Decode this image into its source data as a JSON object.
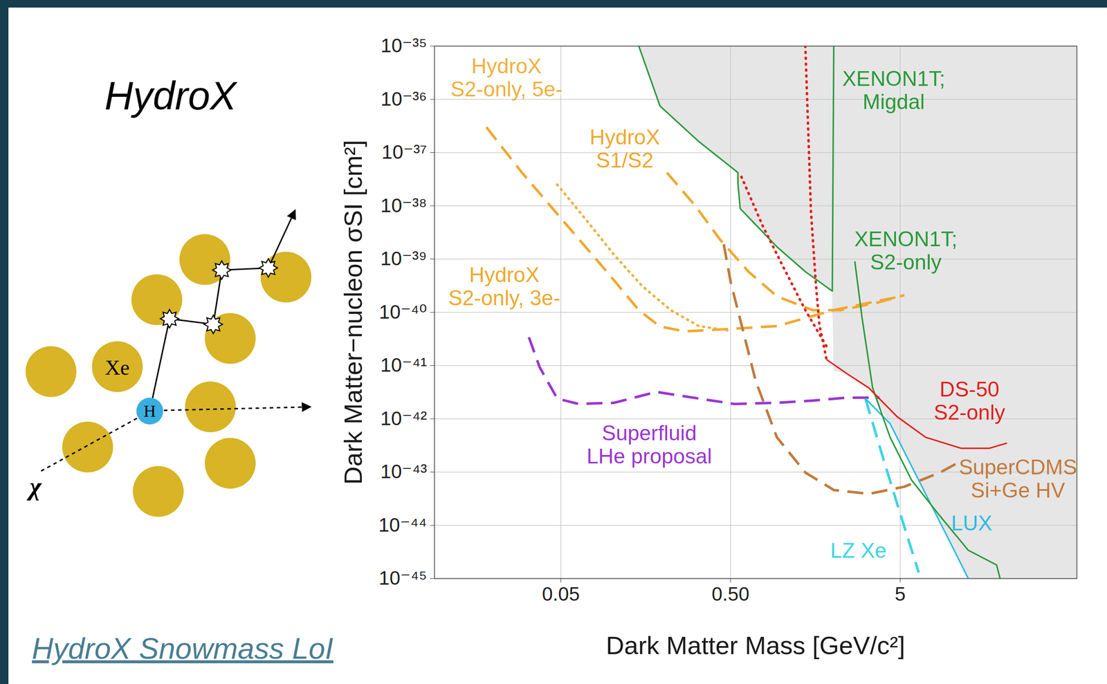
{
  "title": "HydroX",
  "diagram": {
    "atom_label": "Xe",
    "target_label": "H",
    "particle_label": "χ"
  },
  "caption": "HydroX Snowmass LoI",
  "chart_data": {
    "type": "line",
    "x_label": "Dark Matter Mass [GeV/c²]",
    "y_label": "Dark Matter−nucleon σSI [cm²]",
    "log": true,
    "grid": true,
    "xlim": [
      0.009,
      55
    ],
    "ylim": [
      1e-45,
      1e-35
    ],
    "xticks": [
      0.05,
      {
        "value": 0.5,
        "label": "0.50"
      },
      5
    ],
    "yticks": [
      {
        "value": 1e-35,
        "label": "10⁻³⁵"
      },
      {
        "value": 1e-36,
        "label": "10⁻³⁶"
      },
      {
        "value": 1e-37,
        "label": "10⁻³⁷"
      },
      {
        "value": 1e-38,
        "label": "10⁻³⁸"
      },
      {
        "value": 1e-39,
        "label": "10⁻³⁹"
      },
      {
        "value": 1e-40,
        "label": "10⁻⁴⁰"
      },
      {
        "value": 1e-41,
        "label": "10⁻⁴¹"
      },
      {
        "value": 1e-42,
        "label": "10⁻⁴²"
      },
      {
        "value": 1e-43,
        "label": "10⁻⁴³"
      },
      {
        "value": 1e-44,
        "label": "10⁻⁴⁴"
      },
      {
        "value": 1e-45,
        "label": "10⁻⁴⁵"
      }
    ],
    "excluded_region": {
      "color": "#e6e6e6",
      "x": [
        0.144,
        0.192,
        0.326,
        0.553,
        0.57,
        0.938,
        1.38,
        1.99,
        2.03,
        2.45,
        3.27,
        4.36,
        5.83,
        7.79,
        10.4,
        12.6,
        55
      ],
      "y": [
        1e-35,
        7.5e-37,
        1.6e-37,
        4.2e-38,
        8.9e-39,
        1.7e-39,
        5.8e-40,
        2.5e-40,
        8e-42,
        6.9e-42,
        3.8e-42,
        8.1e-43,
        1.3e-43,
        2.1e-44,
        3.4e-45,
        1e-45,
        1e-45
      ]
    },
    "series": [
      {
        "name": "HydroX\nS2-only, 3e-",
        "color": "#f0a830",
        "line_style": "dashed",
        "x": [
          0.0182,
          0.0295,
          0.0525,
          0.0933,
          0.144,
          0.192,
          0.269,
          0.359,
          0.938,
          2.03,
          5.05
        ],
        "values": [
          3e-37,
          4.2e-38,
          4.9e-39,
          5.8e-40,
          1.1e-40,
          5.4e-41,
          4.4e-41,
          4.6e-41,
          5.5e-41,
          1.1e-40,
          2e-40
        ],
        "label_at": [
          0.0232,
          3.1e-40
        ]
      },
      {
        "name": "HydroX\nS2-only, 5e-",
        "color": "#f0b040",
        "line_style": "dotted",
        "x": [
          0.0476,
          0.07,
          0.103,
          0.151,
          0.222,
          0.326,
          0.479
        ],
        "values": [
          2.5e-38,
          5.6e-39,
          1.2e-39,
          3.1e-40,
          1.1e-40,
          5.5e-41,
          4.6e-41
        ],
        "label_at": [
          0.0239,
          2.6e-36
        ]
      },
      {
        "name": "HydroX\nS1/S2",
        "color": "#f0a830",
        "line_style": "dashed",
        "x": [
          0.211,
          0.31,
          0.435,
          0.638,
          0.938,
          1.52,
          2.23,
          3.61,
          5.29
        ],
        "values": [
          4.2e-38,
          1e-38,
          2.3e-39,
          5.8e-40,
          2e-40,
          1.1e-40,
          1.1e-40,
          1.5e-40,
          2.1e-40
        ],
        "label_at": [
          0.119,
          1.2e-37
        ]
      },
      {
        "name": "SuperCDMS\nSi+Ge HV",
        "color": "#c27a3c",
        "line_style": "dashed",
        "x": [
          0.456,
          0.502,
          0.58,
          0.704,
          0.938,
          1.38,
          2.03,
          3.27,
          5.29,
          8.57,
          11.4
        ],
        "values": [
          1.9e-39,
          3.6e-40,
          5.9e-41,
          5.1e-42,
          4.5e-43,
          9.8e-44,
          4.6e-44,
          3.9e-44,
          5.3e-44,
          9.8e-44,
          1.6e-43
        ],
        "label_at": [
          24.7,
          7.6e-44
        ]
      },
      {
        "name": "Superfluid\nLHe proposal",
        "color": "#9b35d0",
        "line_style": "dashed",
        "x": [
          0.0324,
          0.0375,
          0.0476,
          0.0636,
          0.103,
          0.183,
          0.326,
          0.527,
          0.938,
          1.52,
          2.45,
          3.78
        ],
        "values": [
          3.4e-41,
          9.3e-42,
          2.4e-42,
          1.9e-42,
          2e-42,
          3.2e-42,
          2.4e-42,
          1.9e-42,
          2e-42,
          2.2e-42,
          2.5e-42,
          2.5e-42
        ],
        "label_at": [
          0.166,
          3.3e-43
        ]
      },
      {
        "name": "LZ Xe",
        "color": "#3fd3e3",
        "line_style": "dashed",
        "x": [
          3.12,
          3.97,
          5.05,
          6.43
        ],
        "values": [
          2.4e-42,
          1.8e-43,
          1.5e-44,
          1.3e-45
        ],
        "label_at": [
          2.84,
          3.4e-45
        ]
      },
      {
        "name": "LUX",
        "color": "#2bbbe0",
        "line_style": "solid",
        "x": [
          3.12,
          4.36,
          5.83,
          7.79,
          10.4,
          12.6
        ],
        "values": [
          2.4e-42,
          8.1e-43,
          1.3e-43,
          2.1e-44,
          3.4e-45,
          1e-45
        ],
        "label_at": [
          13.2,
          1.1e-44
        ]
      },
      {
        "name": "XENON1T;\nMigdal",
        "color": "#2a9a3a",
        "line_style": "solid",
        "x": [
          0.144,
          0.192,
          0.326,
          0.553,
          0.553,
          0.57,
          0.938,
          1.38,
          1.99,
          2.03
        ],
        "values": [
          1e-35,
          7.5e-37,
          1.6e-37,
          4.2e-38,
          2.6e-38,
          8.9e-39,
          1.7e-39,
          5.8e-40,
          2.5e-40,
          1e-35
        ],
        "label_at": [
          4.58,
          1.5e-36
        ]
      },
      {
        "name": "XENON1T;\nS2-only",
        "color": "#2a9a3a",
        "line_style": "solid",
        "x": [
          2.7,
          2.98,
          3.44,
          4.36,
          5.83,
          8.57,
          12.6,
          18.5,
          19.4
        ],
        "values": [
          9.1e-40,
          7.9e-41,
          3.8e-42,
          4.5e-43,
          7.1e-44,
          1.5e-44,
          3.4e-45,
          1.8e-45,
          1e-45
        ],
        "label_at": [
          5.4,
          1.45e-39
        ]
      },
      {
        "name": "DS-50\nS2-only",
        "color": "#e3201b",
        "line_style": "solid",
        "x": [
          1.84,
          2.45,
          3.27,
          4.79,
          7.06,
          11.4,
          16.8,
          21.3
        ],
        "values": [
          1.3e-41,
          6.9e-42,
          3.8e-42,
          1.1e-42,
          4.5e-43,
          2.8e-43,
          2.8e-43,
          3.5e-43
        ],
        "label_at": [
          12.8,
          2.2e-42
        ]
      },
      {
        "color": "#e3201b",
        "line_style": "dotted",
        "x": [
          1.38,
          1.49,
          1.59,
          1.67,
          1.84
        ],
        "values": [
          1e-35,
          7.8e-39,
          3.6e-40,
          5.9e-41,
          1.3e-41
        ]
      },
      {
        "color": "#e3201b",
        "line_style": "dotted",
        "x": [
          0.58,
          0.774,
          1.03,
          1.38,
          1.84
        ],
        "values": [
          3.5e-38,
          4.2e-39,
          6.8e-40,
          1.1e-40,
          2.3e-41
        ]
      }
    ]
  }
}
